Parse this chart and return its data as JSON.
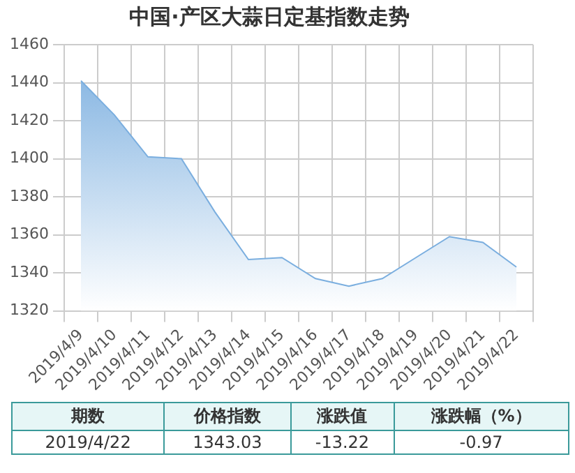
{
  "chart_data": {
    "type": "area",
    "title": "中国·产区大蒜日定基指数走势",
    "categories": [
      "2019/4/9",
      "2019/4/10",
      "2019/4/11",
      "2019/4/12",
      "2019/4/13",
      "2019/4/14",
      "2019/4/15",
      "2019/4/16",
      "2019/4/17",
      "2019/4/18",
      "2019/4/19",
      "2019/4/20",
      "2019/4/21",
      "2019/4/22"
    ],
    "series": [
      {
        "color": "#7aaedf",
        "values": [
          1441,
          1423,
          1401,
          1400,
          1372,
          1347,
          1348,
          1337,
          1333,
          1337,
          1348,
          1359,
          1356,
          1343.03
        ]
      }
    ],
    "ylim": [
      1320,
      1460
    ],
    "yticks": [
      1320,
      1340,
      1360,
      1380,
      1400,
      1420,
      1440,
      1460
    ],
    "grid": true,
    "legend": false,
    "annotations": [
      "期数",
      "价格指数",
      "涨跌值",
      "涨跌幅（%）",
      "2019/4/22",
      "1343.03",
      "-13.22",
      "-0.97"
    ]
  }
}
